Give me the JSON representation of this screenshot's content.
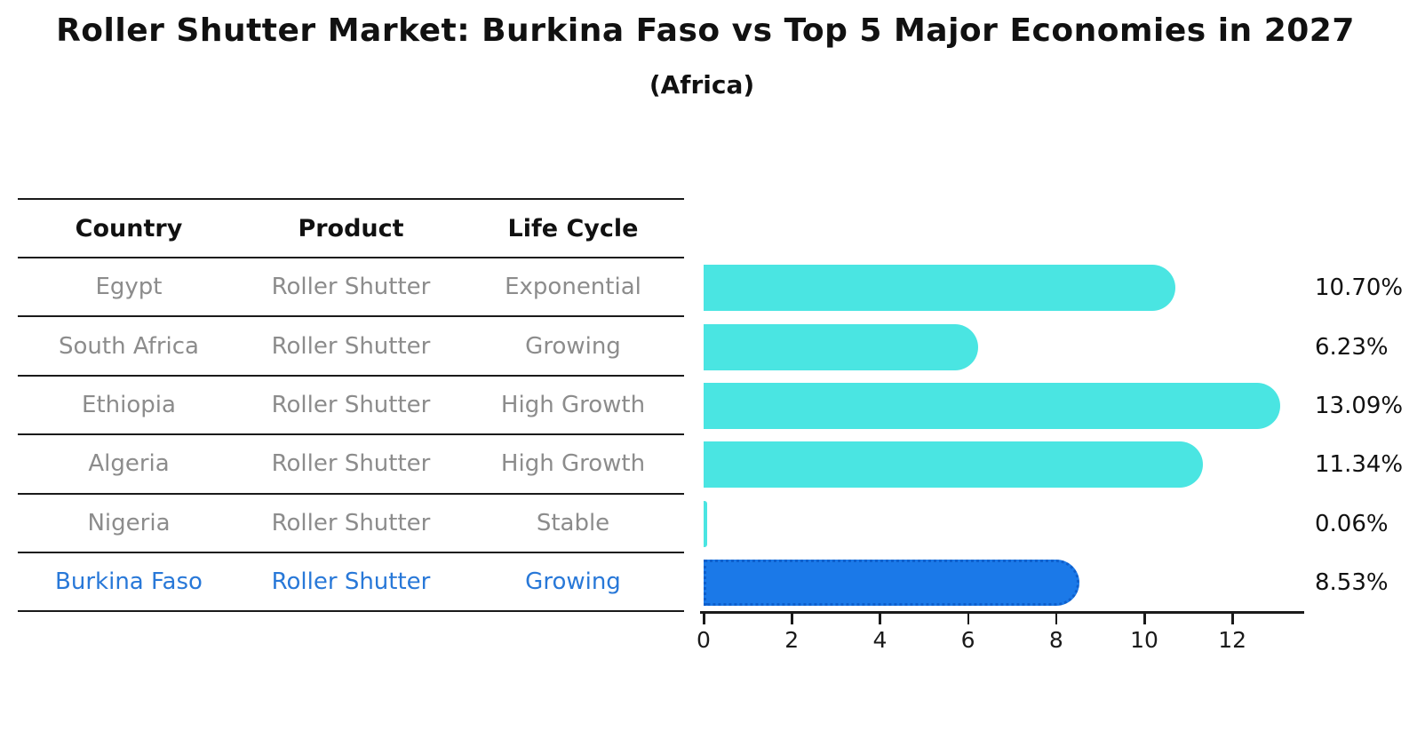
{
  "title": "Roller Shutter Market: Burkina Faso vs Top 5 Major Economies in 2027",
  "subtitle": "(Africa)",
  "table": {
    "headers": [
      "Country",
      "Product",
      "Life Cycle"
    ],
    "rows": [
      {
        "country": "Egypt",
        "product": "Roller Shutter",
        "life_cycle": "Exponential",
        "value_label": "10.70%",
        "highlight": false
      },
      {
        "country": "South Africa",
        "product": "Roller Shutter",
        "life_cycle": "Growing",
        "value_label": "6.23%",
        "highlight": false
      },
      {
        "country": "Ethiopia",
        "product": "Roller Shutter",
        "life_cycle": "High Growth",
        "value_label": "13.09%",
        "highlight": false
      },
      {
        "country": "Algeria",
        "product": "Roller Shutter",
        "life_cycle": "High Growth",
        "value_label": "11.34%",
        "highlight": false
      },
      {
        "country": "Nigeria",
        "product": "Roller Shutter",
        "life_cycle": "Stable",
        "value_label": "0.06%",
        "highlight": false
      },
      {
        "country": "Burkina Faso",
        "product": "Roller Shutter",
        "life_cycle": "Growing",
        "value_label": "8.53%",
        "highlight": true
      }
    ]
  },
  "chart_data": {
    "type": "bar",
    "orientation": "horizontal",
    "title": "Roller Shutter Market: Burkina Faso vs Top 5 Major Economies in 2027",
    "subtitle": "(Africa)",
    "categories": [
      "Egypt",
      "South Africa",
      "Ethiopia",
      "Algeria",
      "Nigeria",
      "Burkina Faso"
    ],
    "values": [
      10.7,
      6.23,
      13.09,
      11.34,
      0.06,
      8.53
    ],
    "value_labels": [
      "10.70%",
      "6.23%",
      "13.09%",
      "11.34%",
      "0.06%",
      "8.53%"
    ],
    "xlabel": "",
    "ylabel": "",
    "xticks": [
      0,
      2,
      4,
      6,
      8,
      10,
      12
    ],
    "xlim": [
      0,
      13.63
    ],
    "grid": false,
    "legend": false,
    "highlight_index": 5
  },
  "colors": {
    "bar": "#4AE5E2",
    "highlight_bar": "#1B79E8",
    "highlight_bar_border": "#0E5FCC",
    "highlight_text": "#2878D8",
    "table_text": "#8C8C8C",
    "header_text": "#111111",
    "line": "#1A1A1A"
  }
}
